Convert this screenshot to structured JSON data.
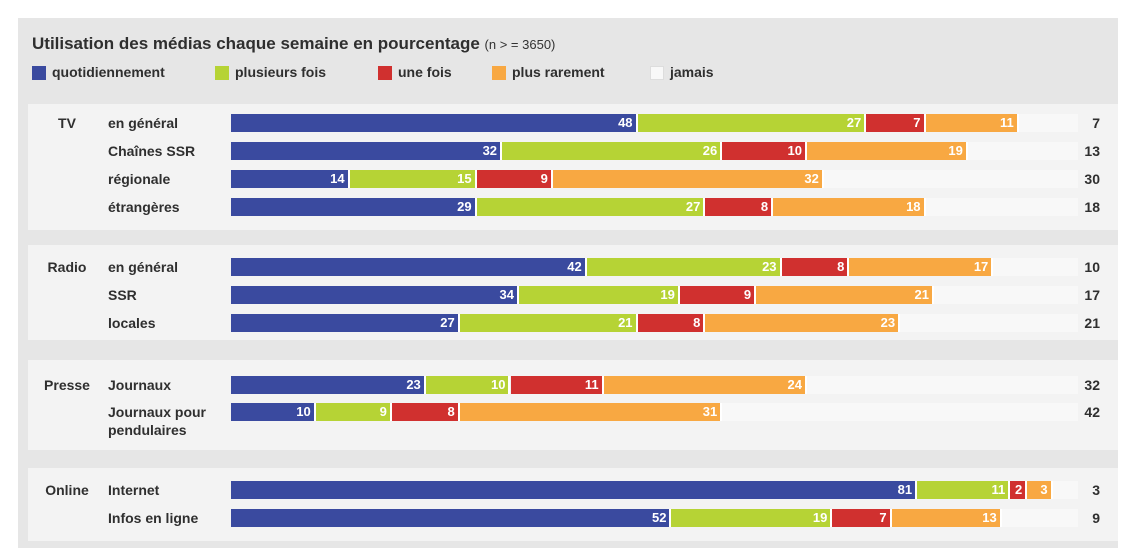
{
  "chart_data": {
    "type": "bar",
    "orientation": "horizontal",
    "stacked": true,
    "title": "Utilisation des médias chaque semaine en pourcentage",
    "subtitle": "(n > = 3650)",
    "xlim": [
      0,
      100
    ],
    "groups": [
      {
        "name": "TV",
        "categories": [
          "en général",
          "Chaînes SSR",
          "régionale",
          "étrangères"
        ]
      },
      {
        "name": "Radio",
        "categories": [
          "en général",
          "SSR",
          "locales"
        ]
      },
      {
        "name": "Presse",
        "categories": [
          "Journaux",
          "Journaux pour pendulaires"
        ]
      },
      {
        "name": "Online",
        "categories": [
          "Internet",
          "Infos en ligne"
        ]
      }
    ],
    "series": [
      {
        "name": "quotidiennement",
        "color": "#3a4a9f",
        "values": [
          48,
          32,
          14,
          29,
          42,
          34,
          27,
          23,
          10,
          81,
          52
        ]
      },
      {
        "name": "plusieurs fois",
        "color": "#b6d335",
        "values": [
          27,
          26,
          15,
          27,
          23,
          19,
          21,
          10,
          9,
          11,
          19
        ]
      },
      {
        "name": "une fois",
        "color": "#d0302f",
        "values": [
          7,
          10,
          9,
          8,
          8,
          9,
          8,
          11,
          8,
          2,
          7
        ]
      },
      {
        "name": "plus rarement",
        "color": "#f8a842",
        "values": [
          11,
          19,
          32,
          18,
          17,
          21,
          23,
          24,
          31,
          3,
          13
        ]
      },
      {
        "name": "jamais",
        "color": "#f8f8f8",
        "label_position": "outside",
        "values": [
          7,
          13,
          30,
          18,
          10,
          17,
          21,
          32,
          42,
          3,
          9
        ]
      }
    ]
  }
}
